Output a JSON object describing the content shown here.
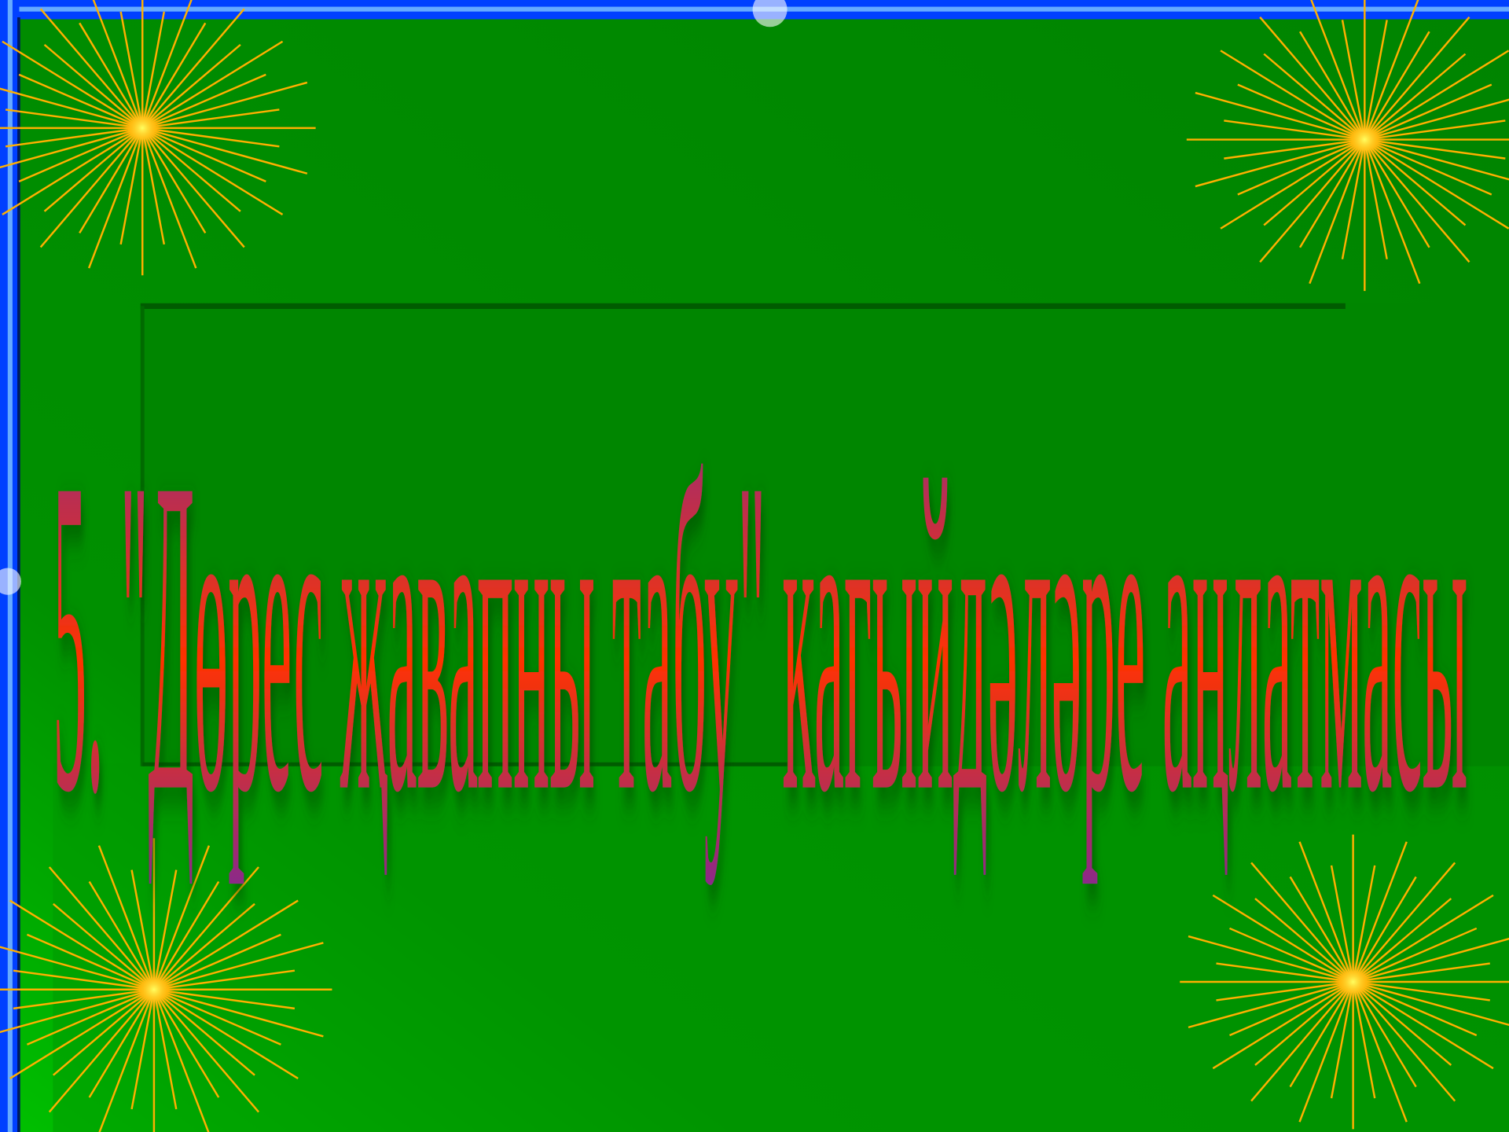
{
  "slide": {
    "title": "5. \"Дөрес җавапны табу\" кагыйдәләре аңлатмасы"
  }
}
